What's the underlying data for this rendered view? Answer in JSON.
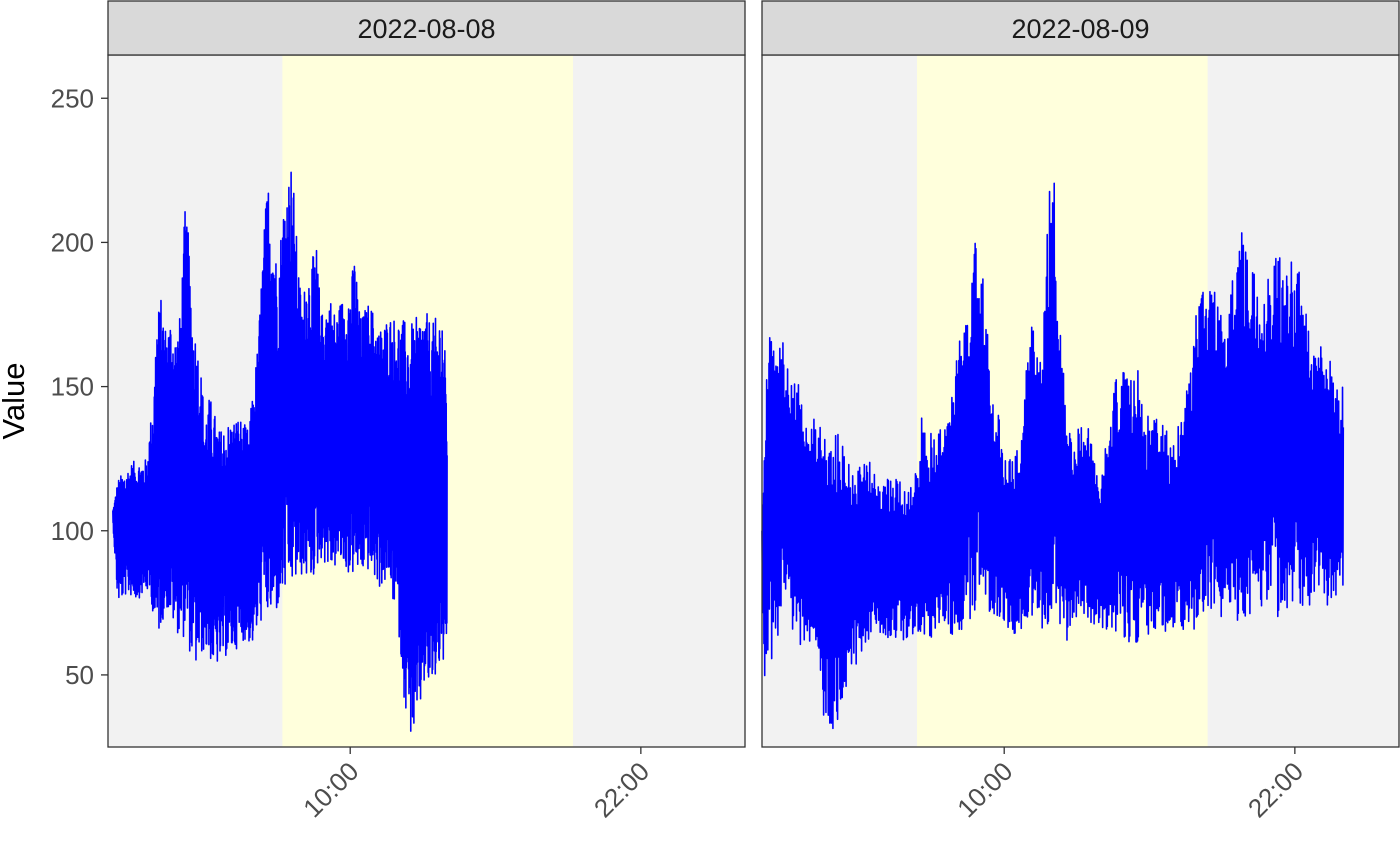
{
  "chart_data": {
    "type": "line",
    "ylabel": "Value",
    "xlabel": "",
    "ylim": [
      25,
      265
    ],
    "xlim_hours": [
      0,
      26.3
    ],
    "yticks": [
      50,
      100,
      150,
      200,
      250
    ],
    "xticks": [
      {
        "hour": 10,
        "label": "10:00"
      },
      {
        "hour": 22,
        "label": "22:00"
      }
    ],
    "grid": false,
    "series_color": "#0000ff",
    "panel_bg": "#f2f2f2",
    "highlight_color": "#ffffdc",
    "strip_bg": "#d9d9d9",
    "facets": [
      {
        "label": "2022-08-08",
        "highlight_hours": [
          7.2,
          19.2
        ],
        "start_hour": 0.2,
        "end_hour": 14,
        "upper_envelope": [
          [
            0.2,
            107
          ],
          [
            0.4,
            118
          ],
          [
            1.0,
            124
          ],
          [
            1.6,
            125
          ],
          [
            1.9,
            150
          ],
          [
            2.0,
            175
          ],
          [
            2.2,
            181
          ],
          [
            2.4,
            170
          ],
          [
            2.6,
            175
          ],
          [
            2.8,
            168
          ],
          [
            3.0,
            176
          ],
          [
            3.1,
            200
          ],
          [
            3.2,
            214
          ],
          [
            3.3,
            205
          ],
          [
            3.5,
            175
          ],
          [
            3.8,
            160
          ],
          [
            4.0,
            140
          ],
          [
            4.2,
            147
          ],
          [
            4.6,
            135
          ],
          [
            5.0,
            138
          ],
          [
            5.4,
            140
          ],
          [
            5.8,
            135
          ],
          [
            6.0,
            150
          ],
          [
            6.2,
            166
          ],
          [
            6.4,
            200
          ],
          [
            6.6,
            223
          ],
          [
            6.8,
            210
          ],
          [
            7.0,
            190
          ],
          [
            7.2,
            211
          ],
          [
            7.4,
            223
          ],
          [
            7.6,
            229
          ],
          [
            7.8,
            200
          ],
          [
            8.0,
            178
          ],
          [
            8.2,
            190
          ],
          [
            8.4,
            193
          ],
          [
            8.6,
            200
          ],
          [
            8.8,
            175
          ],
          [
            9.0,
            180
          ],
          [
            9.2,
            181
          ],
          [
            9.4,
            175
          ],
          [
            9.6,
            180
          ],
          [
            10.0,
            185
          ],
          [
            10.2,
            197
          ],
          [
            10.4,
            174
          ],
          [
            10.8,
            180
          ],
          [
            11.2,
            170
          ],
          [
            11.6,
            175
          ],
          [
            12.0,
            174
          ],
          [
            12.6,
            172
          ],
          [
            13.0,
            178
          ],
          [
            13.4,
            172
          ],
          [
            13.8,
            178
          ],
          [
            14.0,
            150
          ]
        ],
        "lower_envelope": [
          [
            0.2,
            103
          ],
          [
            0.4,
            75
          ],
          [
            0.8,
            78
          ],
          [
            1.2,
            76
          ],
          [
            1.6,
            79
          ],
          [
            1.8,
            75
          ],
          [
            2.0,
            61
          ],
          [
            2.4,
            73
          ],
          [
            2.8,
            65
          ],
          [
            3.2,
            62
          ],
          [
            3.6,
            52
          ],
          [
            4.0,
            59
          ],
          [
            4.4,
            52
          ],
          [
            4.8,
            56
          ],
          [
            5.2,
            58
          ],
          [
            5.6,
            62
          ],
          [
            6.0,
            60
          ],
          [
            6.4,
            70
          ],
          [
            6.8,
            68
          ],
          [
            7.2,
            76
          ],
          [
            7.6,
            80
          ],
          [
            8.0,
            84
          ],
          [
            8.4,
            82
          ],
          [
            8.8,
            90
          ],
          [
            9.2,
            86
          ],
          [
            9.6,
            88
          ],
          [
            10.0,
            84
          ],
          [
            10.4,
            85
          ],
          [
            10.8,
            86
          ],
          [
            11.2,
            80
          ],
          [
            11.6,
            82
          ],
          [
            12.0,
            65
          ],
          [
            12.2,
            44
          ],
          [
            12.4,
            29
          ],
          [
            12.8,
            29
          ],
          [
            13.0,
            45
          ],
          [
            13.4,
            44
          ],
          [
            13.8,
            55
          ],
          [
            14.0,
            45
          ]
        ]
      },
      {
        "label": "2022-08-09",
        "highlight_hours": [
          6.4,
          18.4
        ],
        "start_hour": 0,
        "end_hour": 24,
        "upper_envelope": [
          [
            0.0,
            100
          ],
          [
            0.2,
            177
          ],
          [
            0.4,
            165
          ],
          [
            0.8,
            167
          ],
          [
            1.2,
            160
          ],
          [
            1.6,
            148
          ],
          [
            2.0,
            142
          ],
          [
            2.4,
            140
          ],
          [
            2.8,
            133
          ],
          [
            3.2,
            135
          ],
          [
            3.6,
            128
          ],
          [
            4.0,
            122
          ],
          [
            4.4,
            125
          ],
          [
            4.8,
            120
          ],
          [
            5.2,
            118
          ],
          [
            5.6,
            122
          ],
          [
            6.0,
            115
          ],
          [
            6.4,
            125
          ],
          [
            6.6,
            140
          ],
          [
            7.0,
            135
          ],
          [
            7.6,
            140
          ],
          [
            8.0,
            160
          ],
          [
            8.4,
            175
          ],
          [
            8.8,
            211
          ],
          [
            9.0,
            200
          ],
          [
            9.4,
            160
          ],
          [
            10.0,
            128
          ],
          [
            10.4,
            126
          ],
          [
            10.8,
            135
          ],
          [
            11.0,
            184
          ],
          [
            11.2,
            175
          ],
          [
            11.4,
            175
          ],
          [
            11.6,
            168
          ],
          [
            11.8,
            210
          ],
          [
            12.0,
            244
          ],
          [
            12.2,
            180
          ],
          [
            12.6,
            140
          ],
          [
            13.0,
            135
          ],
          [
            13.4,
            140
          ],
          [
            13.8,
            125
          ],
          [
            14.0,
            120
          ],
          [
            14.4,
            145
          ],
          [
            14.8,
            160
          ],
          [
            15.2,
            150
          ],
          [
            15.4,
            164
          ],
          [
            15.8,
            140
          ],
          [
            16.4,
            140
          ],
          [
            17.0,
            130
          ],
          [
            17.4,
            145
          ],
          [
            17.8,
            165
          ],
          [
            18.0,
            185
          ],
          [
            18.4,
            190
          ],
          [
            18.8,
            186
          ],
          [
            19.2,
            180
          ],
          [
            19.8,
            205
          ],
          [
            20.4,
            190
          ],
          [
            21.2,
            200
          ],
          [
            22.2,
            190
          ],
          [
            22.8,
            170
          ],
          [
            23.4,
            160
          ],
          [
            24.0,
            150
          ]
        ],
        "lower_envelope": [
          [
            0.0,
            92
          ],
          [
            0.1,
            42
          ],
          [
            0.3,
            50
          ],
          [
            0.6,
            60
          ],
          [
            1.0,
            75
          ],
          [
            1.4,
            60
          ],
          [
            1.8,
            60
          ],
          [
            2.2,
            64
          ],
          [
            2.6,
            29
          ],
          [
            3.0,
            29
          ],
          [
            3.4,
            44
          ],
          [
            3.8,
            52
          ],
          [
            4.2,
            60
          ],
          [
            4.6,
            64
          ],
          [
            5.0,
            64
          ],
          [
            5.4,
            62
          ],
          [
            5.8,
            62
          ],
          [
            6.2,
            63
          ],
          [
            6.6,
            65
          ],
          [
            7.0,
            62
          ],
          [
            7.4,
            65
          ],
          [
            7.8,
            64
          ],
          [
            8.2,
            63
          ],
          [
            8.6,
            68
          ],
          [
            9.0,
            72
          ],
          [
            9.4,
            72
          ],
          [
            9.8,
            70
          ],
          [
            10.2,
            65
          ],
          [
            10.6,
            62
          ],
          [
            11.0,
            65
          ],
          [
            11.4,
            62
          ],
          [
            11.8,
            62
          ],
          [
            12.2,
            65
          ],
          [
            12.6,
            62
          ],
          [
            13.0,
            70
          ],
          [
            13.4,
            64
          ],
          [
            13.8,
            66
          ],
          [
            14.2,
            66
          ],
          [
            14.6,
            65
          ],
          [
            15.0,
            62
          ],
          [
            15.4,
            60
          ],
          [
            15.8,
            62
          ],
          [
            16.2,
            62
          ],
          [
            16.6,
            64
          ],
          [
            17.0,
            66
          ],
          [
            17.4,
            65
          ],
          [
            17.8,
            66
          ],
          [
            18.2,
            64
          ],
          [
            18.6,
            66
          ],
          [
            19.0,
            68
          ],
          [
            19.4,
            70
          ],
          [
            19.8,
            68
          ],
          [
            20.2,
            70
          ],
          [
            20.6,
            72
          ],
          [
            21.0,
            75
          ],
          [
            21.4,
            68
          ],
          [
            21.8,
            70
          ],
          [
            22.2,
            72
          ],
          [
            22.6,
            74
          ],
          [
            23.0,
            76
          ],
          [
            23.4,
            74
          ],
          [
            24.0,
            74
          ]
        ]
      }
    ]
  }
}
